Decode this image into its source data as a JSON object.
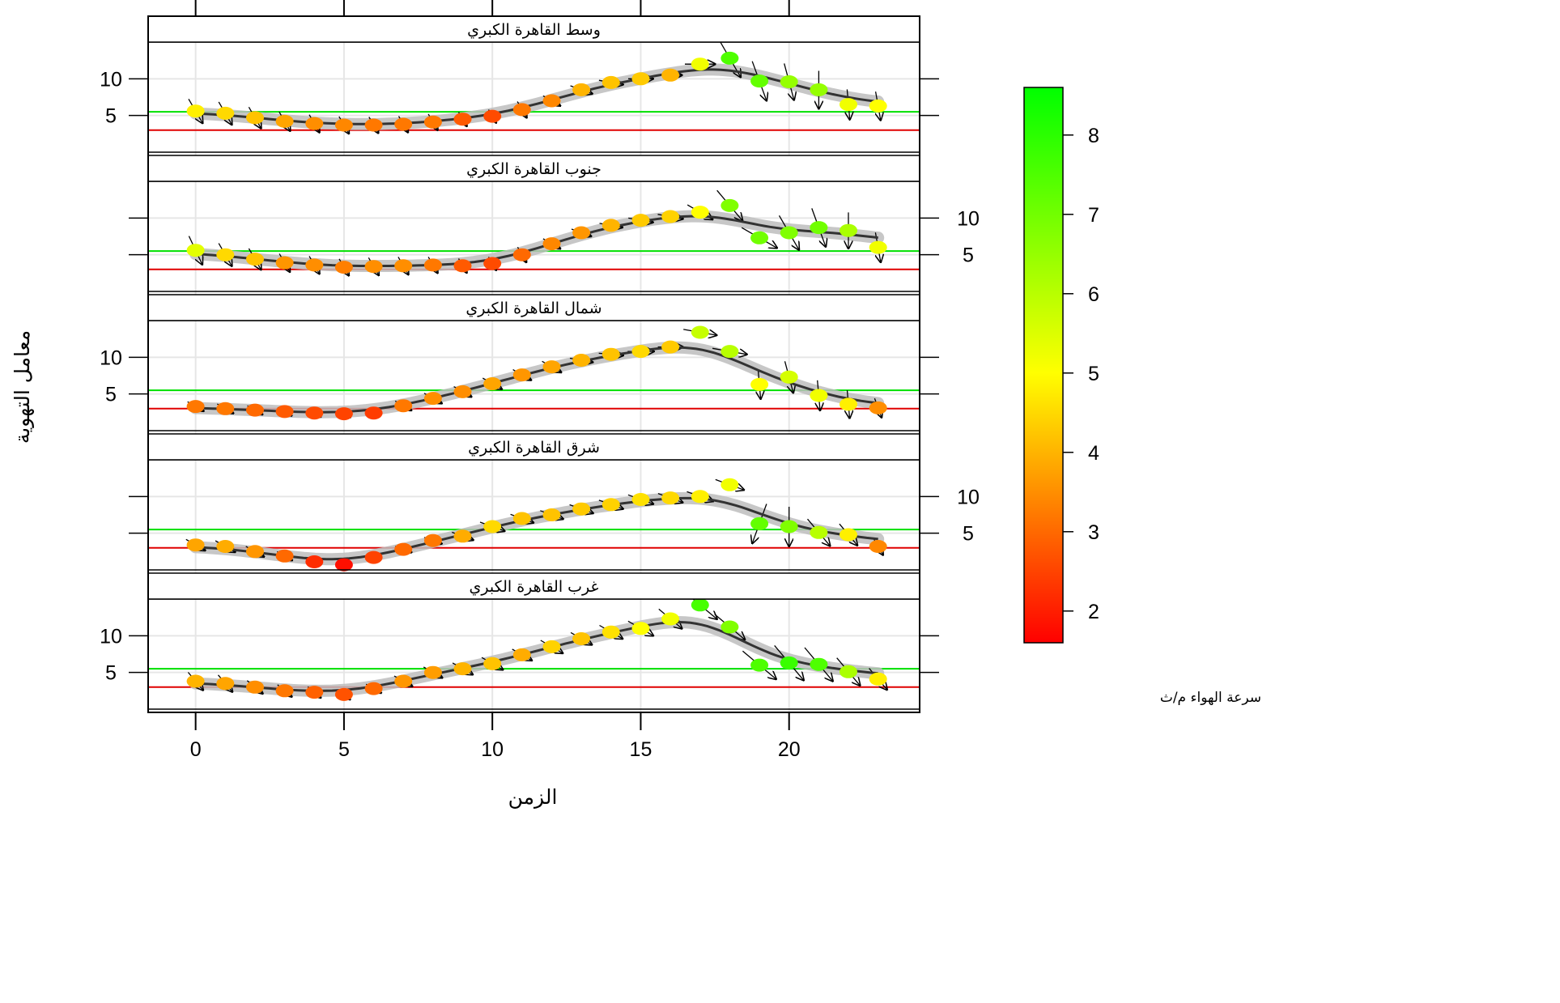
{
  "chart_data": {
    "type": "scatter",
    "xlabel": "الزمن",
    "ylabel": "معامل التهوية",
    "x_ticks": [
      0,
      5,
      10,
      15,
      20
    ],
    "y_ticks": [
      5,
      10
    ],
    "xlim": [
      -1.6,
      24.4
    ],
    "ylim": [
      0,
      15
    ],
    "reference_lines": [
      {
        "y": 5.5,
        "color": "#00e000"
      },
      {
        "y": 3.0,
        "color": "#e00000"
      }
    ],
    "colorbar": {
      "title": "سرعة الهواء م/ث",
      "ticks": [
        2,
        3,
        4,
        5,
        6,
        7,
        8
      ],
      "range": [
        1.6,
        8.6
      ],
      "low_color": "#ff0000",
      "mid_color": "#ffff00",
      "high_color": "#00ff00"
    },
    "panels": [
      {
        "name": "وسط القاهرة الكبري",
        "hours": [
          0,
          1,
          2,
          3,
          4,
          5,
          6,
          7,
          8,
          9,
          10,
          11,
          12,
          13,
          14,
          15,
          16,
          17,
          18,
          19,
          20,
          21,
          22,
          23
        ],
        "ventilation": [
          5.6,
          5.3,
          4.7,
          4.2,
          3.9,
          3.7,
          3.7,
          3.8,
          4.1,
          4.5,
          4.9,
          5.8,
          7.0,
          8.5,
          9.5,
          10.0,
          10.5,
          12.0,
          12.8,
          9.7,
          9.6,
          8.5,
          6.5,
          6.3
        ],
        "wind_speed": [
          4.8,
          4.5,
          4.2,
          3.8,
          3.5,
          3.4,
          3.2,
          3.2,
          3.2,
          2.8,
          2.6,
          3.2,
          3.4,
          4.0,
          4.2,
          4.3,
          4.0,
          5.2,
          7.5,
          7.2,
          6.5,
          6.5,
          5.2,
          5.0
        ],
        "wind_dir": [
          330,
          330,
          330,
          330,
          330,
          330,
          330,
          330,
          330,
          330,
          330,
          330,
          300,
          290,
          280,
          270,
          270,
          270,
          330,
          340,
          345,
          360,
          355,
          350
        ]
      },
      {
        "name": "جنوب القاهرة الكبري",
        "hours": [
          0,
          1,
          2,
          3,
          4,
          5,
          6,
          7,
          8,
          9,
          10,
          11,
          12,
          13,
          14,
          15,
          16,
          17,
          18,
          19,
          20,
          21,
          22,
          23
        ],
        "ventilation": [
          5.6,
          5.0,
          4.4,
          3.9,
          3.6,
          3.3,
          3.4,
          3.5,
          3.6,
          3.5,
          3.8,
          5.0,
          6.5,
          8.0,
          9.0,
          9.7,
          10.2,
          10.8,
          11.7,
          7.3,
          8.0,
          8.7,
          8.3,
          6.0
        ],
        "wind_speed": [
          5.4,
          4.5,
          4.2,
          3.6,
          3.5,
          3.3,
          3.5,
          3.5,
          3.2,
          2.8,
          2.6,
          3.0,
          3.4,
          3.6,
          4.0,
          4.3,
          4.4,
          5.0,
          6.8,
          7.0,
          6.8,
          7.0,
          6.2,
          5.2
        ],
        "wind_dir": [
          335,
          330,
          330,
          330,
          330,
          330,
          330,
          330,
          330,
          330,
          330,
          330,
          300,
          290,
          280,
          280,
          280,
          300,
          320,
          300,
          330,
          340,
          360,
          350
        ]
      },
      {
        "name": "شمال القاهرة الكبري",
        "hours": [
          0,
          1,
          2,
          3,
          4,
          5,
          6,
          7,
          8,
          9,
          10,
          11,
          12,
          13,
          14,
          15,
          16,
          17,
          18,
          19,
          20,
          21,
          22,
          23
        ],
        "ventilation": [
          3.3,
          3.0,
          2.8,
          2.6,
          2.4,
          2.3,
          2.4,
          3.4,
          4.4,
          5.3,
          6.4,
          7.6,
          8.7,
          9.6,
          10.4,
          10.8,
          11.4,
          13.4,
          10.8,
          6.3,
          7.3,
          4.8,
          3.6,
          3.1
        ],
        "wind_speed": [
          3.2,
          3.2,
          3.0,
          2.8,
          2.6,
          2.5,
          2.4,
          3.2,
          3.5,
          3.5,
          3.8,
          3.6,
          3.8,
          4.0,
          4.2,
          4.5,
          4.3,
          5.8,
          6.0,
          5.0,
          5.6,
          5.2,
          4.8,
          3.5
        ],
        "wind_dir": [
          300,
          300,
          300,
          300,
          300,
          300,
          300,
          300,
          300,
          300,
          300,
          300,
          300,
          280,
          275,
          270,
          270,
          280,
          280,
          355,
          345,
          355,
          355,
          340
        ]
      },
      {
        "name": "شرق القاهرة الكبري",
        "hours": [
          0,
          1,
          2,
          3,
          4,
          5,
          6,
          7,
          8,
          9,
          10,
          11,
          12,
          13,
          14,
          15,
          16,
          17,
          18,
          19,
          20,
          21,
          22,
          23
        ],
        "ventilation": [
          3.4,
          3.2,
          2.5,
          1.9,
          1.1,
          0.7,
          1.7,
          2.8,
          4.0,
          4.6,
          5.9,
          7.0,
          7.5,
          8.3,
          8.9,
          9.6,
          9.8,
          10.0,
          11.6,
          6.3,
          5.9,
          5.1,
          4.8,
          3.2
        ],
        "wind_speed": [
          3.8,
          3.9,
          3.6,
          3.0,
          2.2,
          1.8,
          2.5,
          3.0,
          3.2,
          3.9,
          4.5,
          4.2,
          4.2,
          4.3,
          4.4,
          4.6,
          4.5,
          4.8,
          5.2,
          7.2,
          6.8,
          6.0,
          4.8,
          3.4
        ],
        "wind_dir": [
          300,
          300,
          300,
          300,
          300,
          300,
          290,
          290,
          290,
          290,
          290,
          290,
          290,
          290,
          290,
          290,
          290,
          290,
          290,
          20,
          0,
          320,
          320,
          330
        ]
      },
      {
        "name": "غرب القاهرة الكبري",
        "hours": [
          0,
          1,
          2,
          3,
          4,
          5,
          6,
          7,
          8,
          9,
          10,
          11,
          12,
          13,
          14,
          15,
          16,
          17,
          18,
          19,
          20,
          21,
          22,
          23
        ],
        "ventilation": [
          3.8,
          3.5,
          3.0,
          2.5,
          2.3,
          2.0,
          2.8,
          3.8,
          5.0,
          5.5,
          6.2,
          7.4,
          8.5,
          9.6,
          10.5,
          11.0,
          12.3,
          14.2,
          11.2,
          6.0,
          6.3,
          6.1,
          5.1,
          4.1
        ],
        "wind_speed": [
          4.0,
          3.8,
          3.5,
          3.2,
          2.9,
          2.7,
          3.0,
          3.6,
          3.7,
          4.0,
          4.2,
          3.9,
          4.4,
          4.2,
          4.6,
          5.0,
          5.2,
          7.6,
          6.8,
          7.5,
          7.8,
          7.5,
          6.2,
          4.8
        ],
        "wind_dir": [
          320,
          320,
          310,
          310,
          310,
          310,
          300,
          300,
          300,
          300,
          300,
          300,
          300,
          300,
          300,
          300,
          310,
          310,
          310,
          310,
          320,
          320,
          320,
          320
        ]
      }
    ]
  }
}
